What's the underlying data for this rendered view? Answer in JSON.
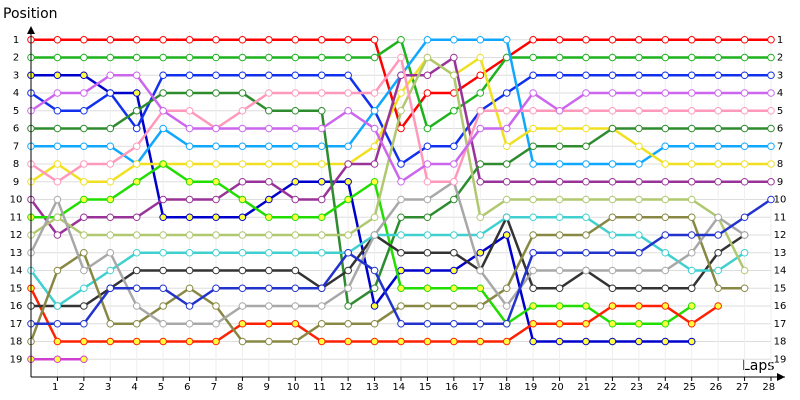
{
  "chart_data": {
    "type": "line",
    "title": "Position",
    "x_label": "Laps",
    "x": [
      0,
      1,
      2,
      3,
      4,
      5,
      6,
      7,
      8,
      9,
      10,
      11,
      12,
      13,
      14,
      15,
      16,
      17,
      18,
      19,
      20,
      21,
      22,
      23,
      24,
      25,
      26,
      27,
      28
    ],
    "xlim": [
      0,
      28
    ],
    "xticks": [
      1,
      2,
      3,
      4,
      5,
      6,
      7,
      8,
      9,
      10,
      11,
      12,
      13,
      14,
      15,
      16,
      17,
      18,
      19,
      20,
      21,
      22,
      23,
      24,
      25,
      26,
      27,
      28
    ],
    "ylim": [
      0,
      20
    ],
    "y_inverted": true,
    "yticks": [
      1,
      2,
      3,
      4,
      5,
      6,
      7,
      8,
      9,
      10,
      11,
      12,
      13,
      14,
      15,
      16,
      17,
      18,
      19
    ],
    "grid": true,
    "series": [
      {
        "color": "#ff0000",
        "marker_fill": "#ffffff",
        "values": [
          1,
          1,
          1,
          1,
          1,
          1,
          1,
          1,
          1,
          1,
          1,
          1,
          1,
          1,
          6,
          4,
          4,
          3,
          2,
          1,
          1,
          1,
          1,
          1,
          1,
          1,
          1,
          1,
          1
        ]
      },
      {
        "color": "#1db31d",
        "marker_fill": "#ffffff",
        "values": [
          2,
          2,
          2,
          2,
          2,
          2,
          2,
          2,
          2,
          2,
          2,
          2,
          2,
          2,
          1,
          6,
          5,
          4,
          2,
          2,
          2,
          2,
          2,
          2,
          2,
          2,
          2,
          2,
          2
        ]
      },
      {
        "color": "#0000cc",
        "marker_fill": "#ffff40",
        "values": [
          3,
          3,
          3,
          4,
          4,
          11,
          11,
          11,
          11,
          10,
          9,
          9,
          9,
          16,
          14,
          14,
          14,
          13,
          12,
          18,
          18,
          18,
          18,
          18,
          18,
          18,
          null,
          null,
          null
        ]
      },
      {
        "color": "#1030ee",
        "marker_fill": "#ffffff",
        "values": [
          4,
          5,
          5,
          4,
          6,
          3,
          3,
          3,
          3,
          3,
          3,
          3,
          3,
          5,
          8,
          7,
          7,
          5,
          4,
          3,
          3,
          3,
          3,
          3,
          3,
          3,
          3,
          3,
          3
        ]
      },
      {
        "color": "#10a8ff",
        "marker_fill": "#ffffff",
        "values": [
          7,
          7,
          7,
          7,
          8,
          6,
          7,
          7,
          7,
          7,
          7,
          7,
          7,
          5,
          3,
          1,
          1,
          1,
          1,
          8,
          8,
          8,
          8,
          8,
          7,
          7,
          7,
          7,
          7
        ]
      },
      {
        "color": "#f0e020",
        "marker_fill": "#ffffff",
        "values": [
          9,
          8,
          9,
          9,
          8,
          8,
          8,
          8,
          8,
          8,
          8,
          8,
          8,
          7,
          4,
          2,
          3,
          2,
          7,
          6,
          6,
          6,
          6,
          7,
          8,
          8,
          8,
          8,
          8
        ]
      },
      {
        "color": "#993399",
        "marker_fill": "#ffffff",
        "values": [
          10,
          12,
          11,
          11,
          11,
          10,
          10,
          10,
          9,
          9,
          10,
          10,
          8,
          8,
          3,
          3,
          2,
          9,
          9,
          9,
          9,
          9,
          9,
          9,
          9,
          9,
          9,
          9,
          9
        ]
      },
      {
        "color": "#2e8b2e",
        "marker_fill": "#ffffff",
        "values": [
          6,
          6,
          6,
          6,
          5,
          4,
          4,
          4,
          4,
          5,
          5,
          5,
          16,
          15,
          11,
          11,
          10,
          8,
          8,
          7,
          7,
          7,
          6,
          6,
          6,
          6,
          6,
          6,
          6
        ]
      },
      {
        "color": "#22dd00",
        "marker_fill": "#ffff40",
        "values": [
          11,
          11,
          10,
          10,
          9,
          8,
          9,
          9,
          10,
          11,
          11,
          11,
          10,
          9,
          15,
          15,
          15,
          15,
          17,
          16,
          16,
          16,
          17,
          17,
          17,
          16,
          null,
          null,
          null
        ]
      },
      {
        "color": "#ff2000",
        "marker_fill": "#ffff40",
        "values": [
          15,
          18,
          18,
          18,
          18,
          18,
          18,
          18,
          17,
          17,
          17,
          18,
          18,
          18,
          18,
          18,
          18,
          18,
          18,
          17,
          17,
          17,
          16,
          16,
          16,
          17,
          16,
          null,
          null
        ]
      },
      {
        "color": "#d040d0",
        "marker_fill": "#ffff40",
        "values": [
          19,
          19,
          19,
          null,
          null,
          null,
          null,
          null,
          null,
          null,
          null,
          null,
          null,
          null,
          null,
          null,
          null,
          null,
          null,
          null,
          null,
          null,
          null,
          null,
          null,
          null,
          null,
          null,
          null
        ]
      },
      {
        "color": "#333333",
        "marker_fill": "#ffffff",
        "values": [
          16,
          16,
          16,
          15,
          14,
          14,
          14,
          14,
          14,
          14,
          14,
          15,
          14,
          12,
          13,
          13,
          13,
          14,
          11,
          15,
          15,
          14,
          15,
          15,
          15,
          15,
          13,
          12,
          null
        ]
      },
      {
        "color": "#40d0d0",
        "marker_fill": "#ffffff",
        "values": [
          14,
          16,
          15,
          14,
          13,
          13,
          13,
          13,
          13,
          13,
          13,
          13,
          13,
          12,
          12,
          12,
          12,
          12,
          11,
          11,
          11,
          11,
          12,
          12,
          13,
          14,
          14,
          13,
          null
        ]
      },
      {
        "color": "#888844",
        "marker_fill": "#ffffff",
        "values": [
          18,
          14,
          13,
          17,
          17,
          16,
          15,
          16,
          18,
          18,
          18,
          17,
          17,
          17,
          16,
          16,
          16,
          16,
          15,
          12,
          12,
          12,
          11,
          11,
          11,
          11,
          15,
          15,
          null
        ]
      },
      {
        "color": "#b0c870",
        "marker_fill": "#ffffff",
        "values": [
          12,
          11,
          12,
          12,
          12,
          12,
          12,
          12,
          12,
          12,
          12,
          12,
          12,
          11,
          5,
          2,
          3,
          11,
          10,
          10,
          10,
          10,
          10,
          10,
          10,
          10,
          11,
          14,
          null
        ]
      },
      {
        "color": "#a8a8a8",
        "marker_fill": "#ffffff",
        "values": [
          13,
          10,
          14,
          13,
          16,
          17,
          17,
          17,
          16,
          16,
          16,
          16,
          15,
          12,
          10,
          10,
          9,
          14,
          16,
          14,
          14,
          14,
          14,
          14,
          14,
          13,
          11,
          12,
          null
        ]
      },
      {
        "color": "#ff99bb",
        "marker_fill": "#ffffff",
        "values": [
          8,
          9,
          8,
          8,
          7,
          5,
          5,
          6,
          5,
          4,
          4,
          4,
          4,
          4,
          2,
          9,
          9,
          5,
          5,
          5,
          5,
          5,
          5,
          5,
          5,
          5,
          5,
          5,
          5
        ]
      },
      {
        "color": "#cc66ee",
        "marker_fill": "#ffffff",
        "values": [
          5,
          4,
          4,
          3,
          3,
          5,
          6,
          6,
          6,
          6,
          6,
          6,
          5,
          6,
          9,
          8,
          8,
          6,
          6,
          4,
          5,
          4,
          4,
          4,
          4,
          4,
          4,
          4,
          4
        ]
      },
      {
        "color": "#2233cc",
        "marker_fill": "#ffffff",
        "values": [
          17,
          17,
          17,
          15,
          15,
          15,
          16,
          15,
          15,
          15,
          15,
          15,
          13,
          14,
          17,
          17,
          17,
          17,
          17,
          13,
          13,
          13,
          13,
          13,
          12,
          12,
          12,
          11,
          10
        ]
      }
    ]
  }
}
